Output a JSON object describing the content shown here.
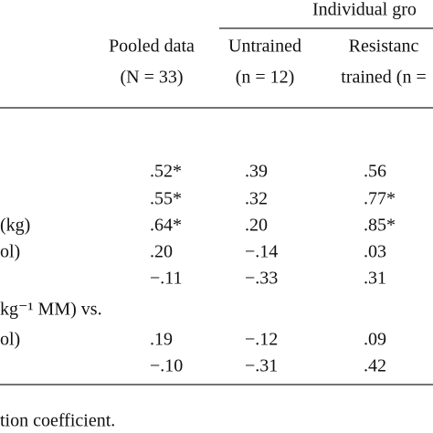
{
  "header": {
    "group_title": "Individual gro"
  },
  "columns": [
    {
      "line1": "Pooled data",
      "line2": "(N = 33)"
    },
    {
      "line1": "Untrained",
      "line2": "(n = 12)"
    },
    {
      "line1": "Resistanc",
      "line2": "trained (n ="
    }
  ],
  "rows": [
    {
      "cells": [
        ".52*",
        ".39",
        ".56"
      ]
    },
    {
      "cells": [
        ".55*",
        ".32",
        ".77*"
      ]
    },
    {
      "label": "(kg)",
      "cells": [
        ".64*",
        ".20",
        ".85*"
      ]
    },
    {
      "label": "ol)",
      "cells": [
        ".20",
        "−.14",
        ".03"
      ]
    },
    {
      "cells": [
        "−.11",
        "−.33",
        ".31"
      ]
    },
    {
      "label": "kg⁻¹ MM) vs."
    },
    {
      "label": "ol)",
      "cells": [
        ".19",
        "−.12",
        ".09"
      ]
    },
    {
      "cells": [
        "−.10",
        "−.31",
        ".42"
      ]
    }
  ],
  "footnote": "tion coefficient."
}
